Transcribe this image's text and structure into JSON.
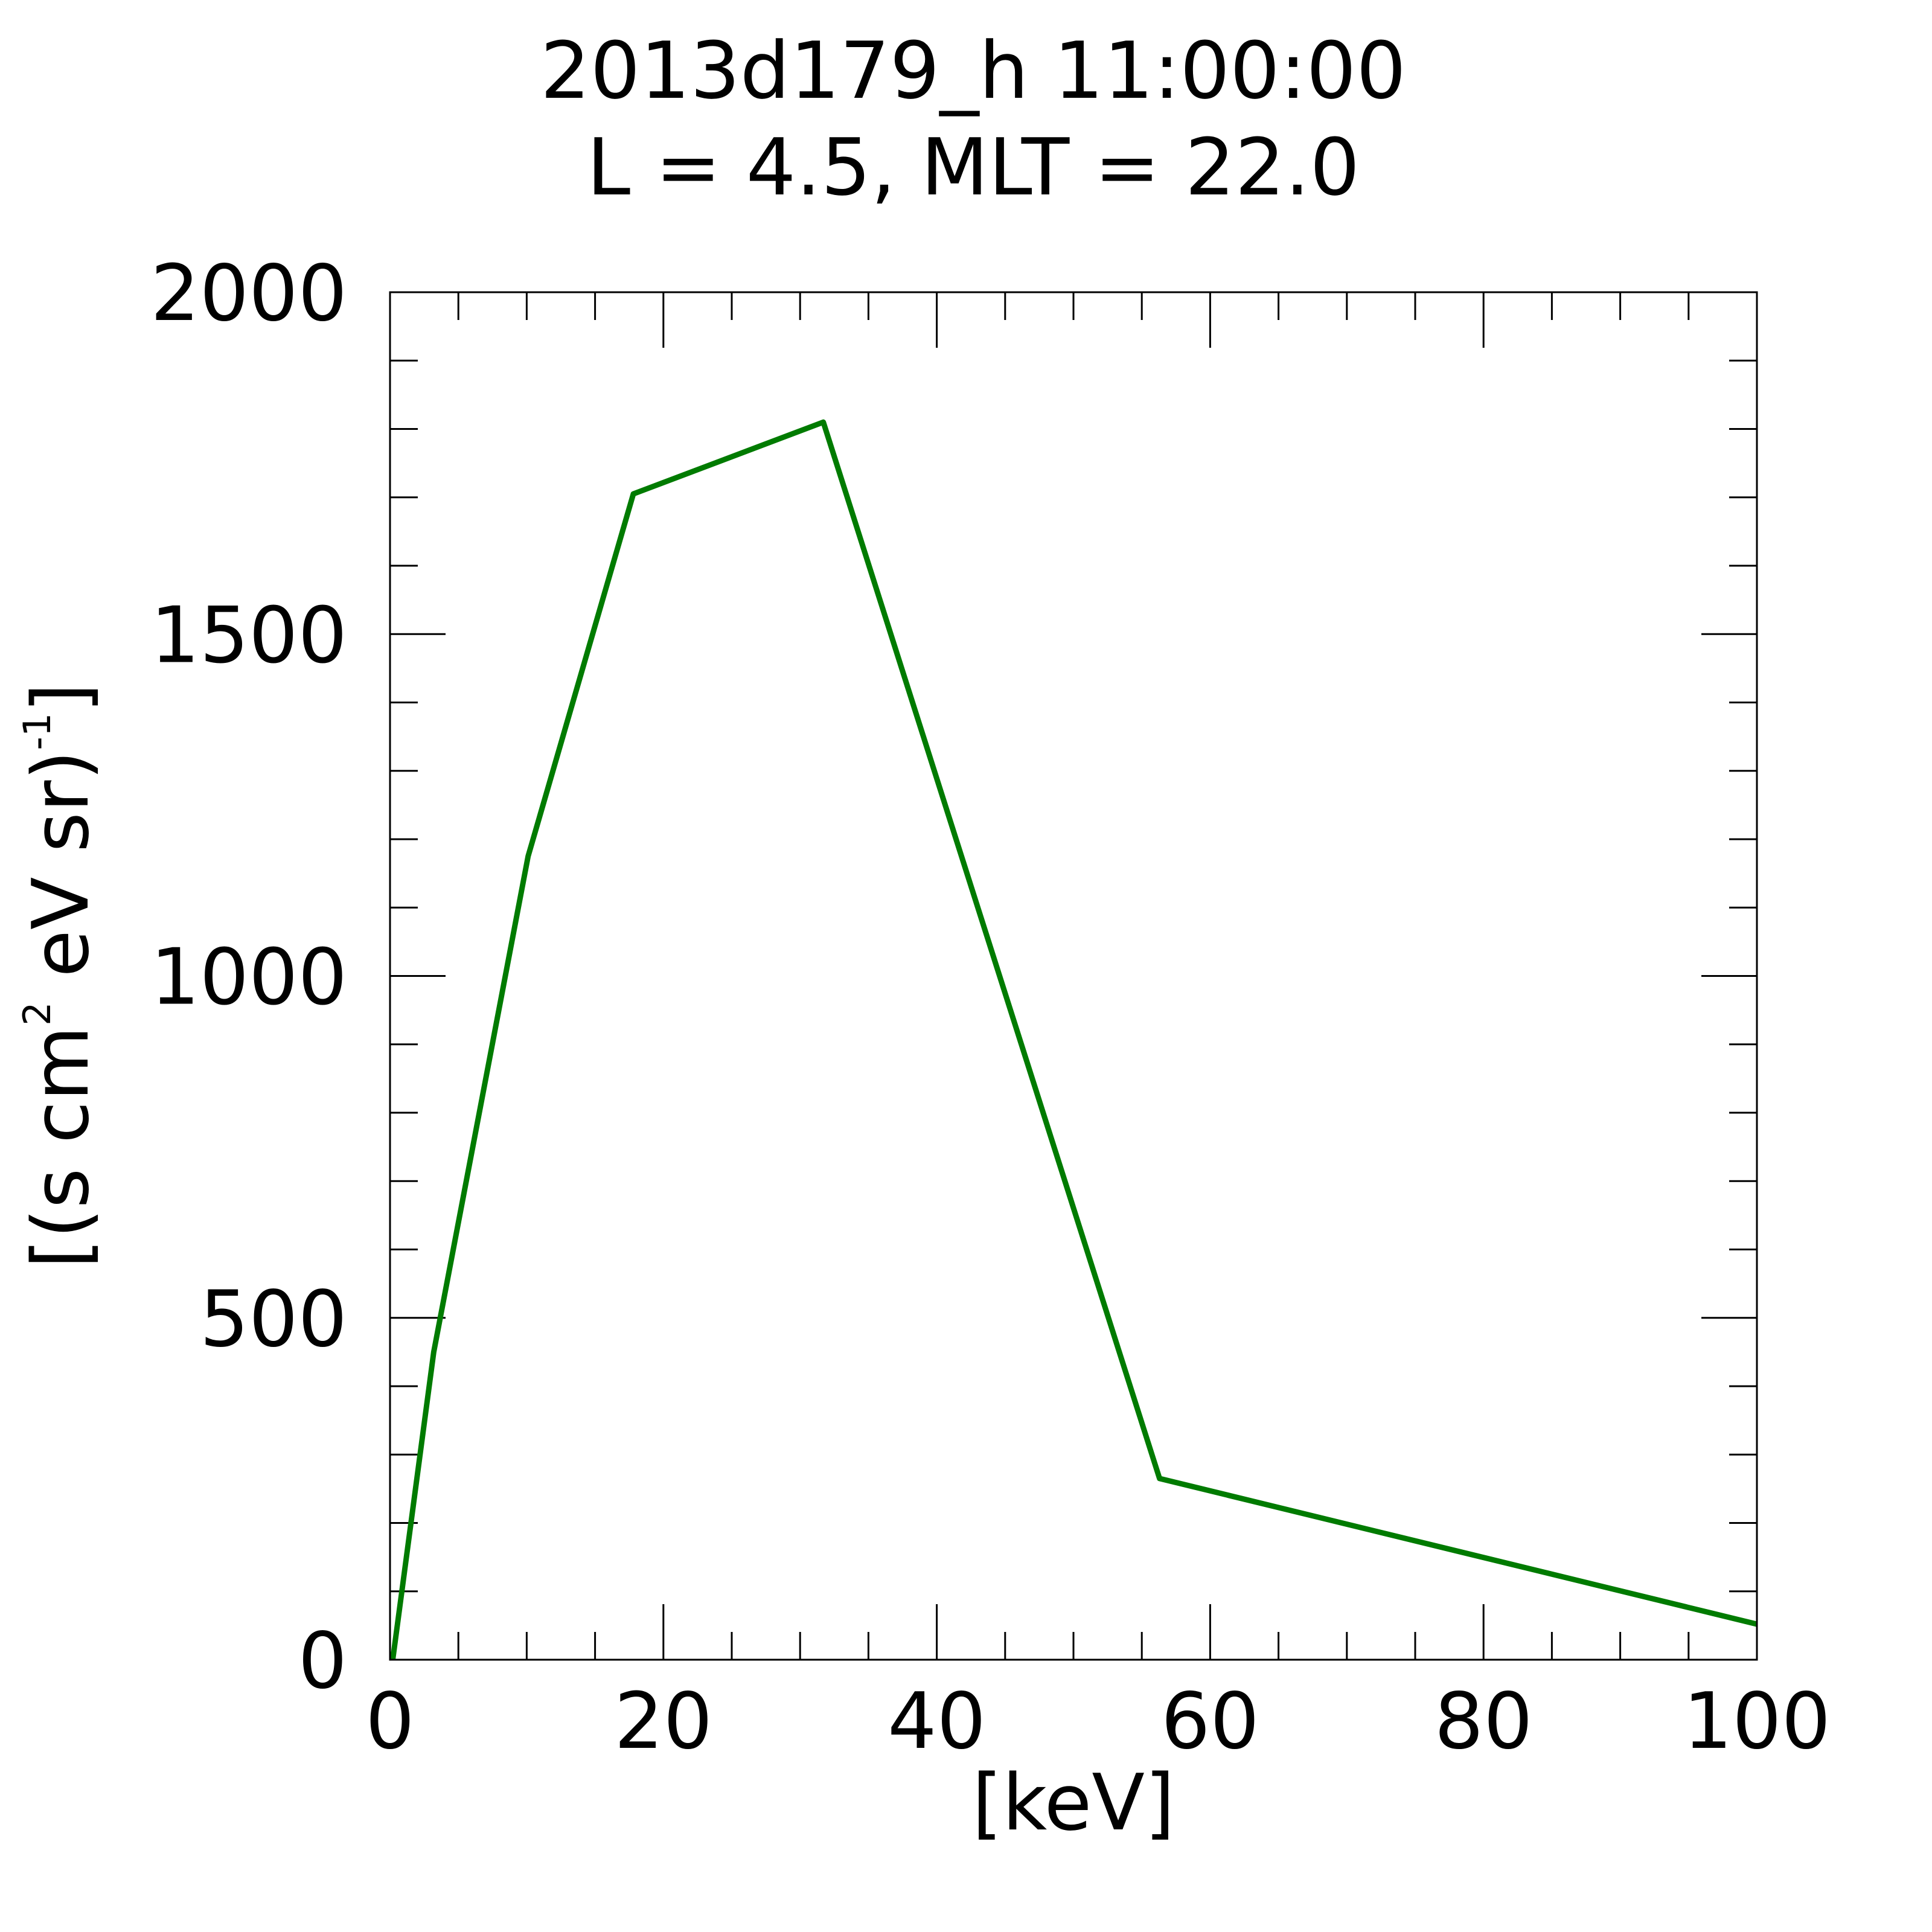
{
  "chart_data": {
    "type": "line",
    "title": "2013d179_h  11:00:00",
    "subtitle": "L = 4.5, MLT = 22.0",
    "xlabel": "[keV]",
    "ylabel": {
      "prefix": "[(s cm",
      "sup1": "2",
      "middle": " eV sr)",
      "sup2": "-1",
      "suffix": "]"
    },
    "xlim": [
      0,
      100
    ],
    "ylim": [
      0,
      2000
    ],
    "xticks": [
      {
        "value": 0,
        "label": "0"
      },
      {
        "value": 20,
        "label": "20"
      },
      {
        "value": 40,
        "label": "40"
      },
      {
        "value": 60,
        "label": "60"
      },
      {
        "value": 80,
        "label": "80"
      },
      {
        "value": 100,
        "label": "100"
      }
    ],
    "yticks": [
      {
        "value": 0,
        "label": "0"
      },
      {
        "value": 500,
        "label": "500"
      },
      {
        "value": 1000,
        "label": "1000"
      },
      {
        "value": 1500,
        "label": "1500"
      },
      {
        "value": 2000,
        "label": "2000"
      }
    ],
    "x_minor_step": 5,
    "y_minor_step": 100,
    "grid": false,
    "series": [
      {
        "color": "#007b00",
        "points": [
          [
            0.2,
            0
          ],
          [
            3.2,
            450
          ],
          [
            10.1,
            1175
          ],
          [
            17.8,
            1705
          ],
          [
            31.7,
            1810
          ],
          [
            56.3,
            265
          ],
          [
            100,
            52
          ]
        ]
      }
    ]
  }
}
